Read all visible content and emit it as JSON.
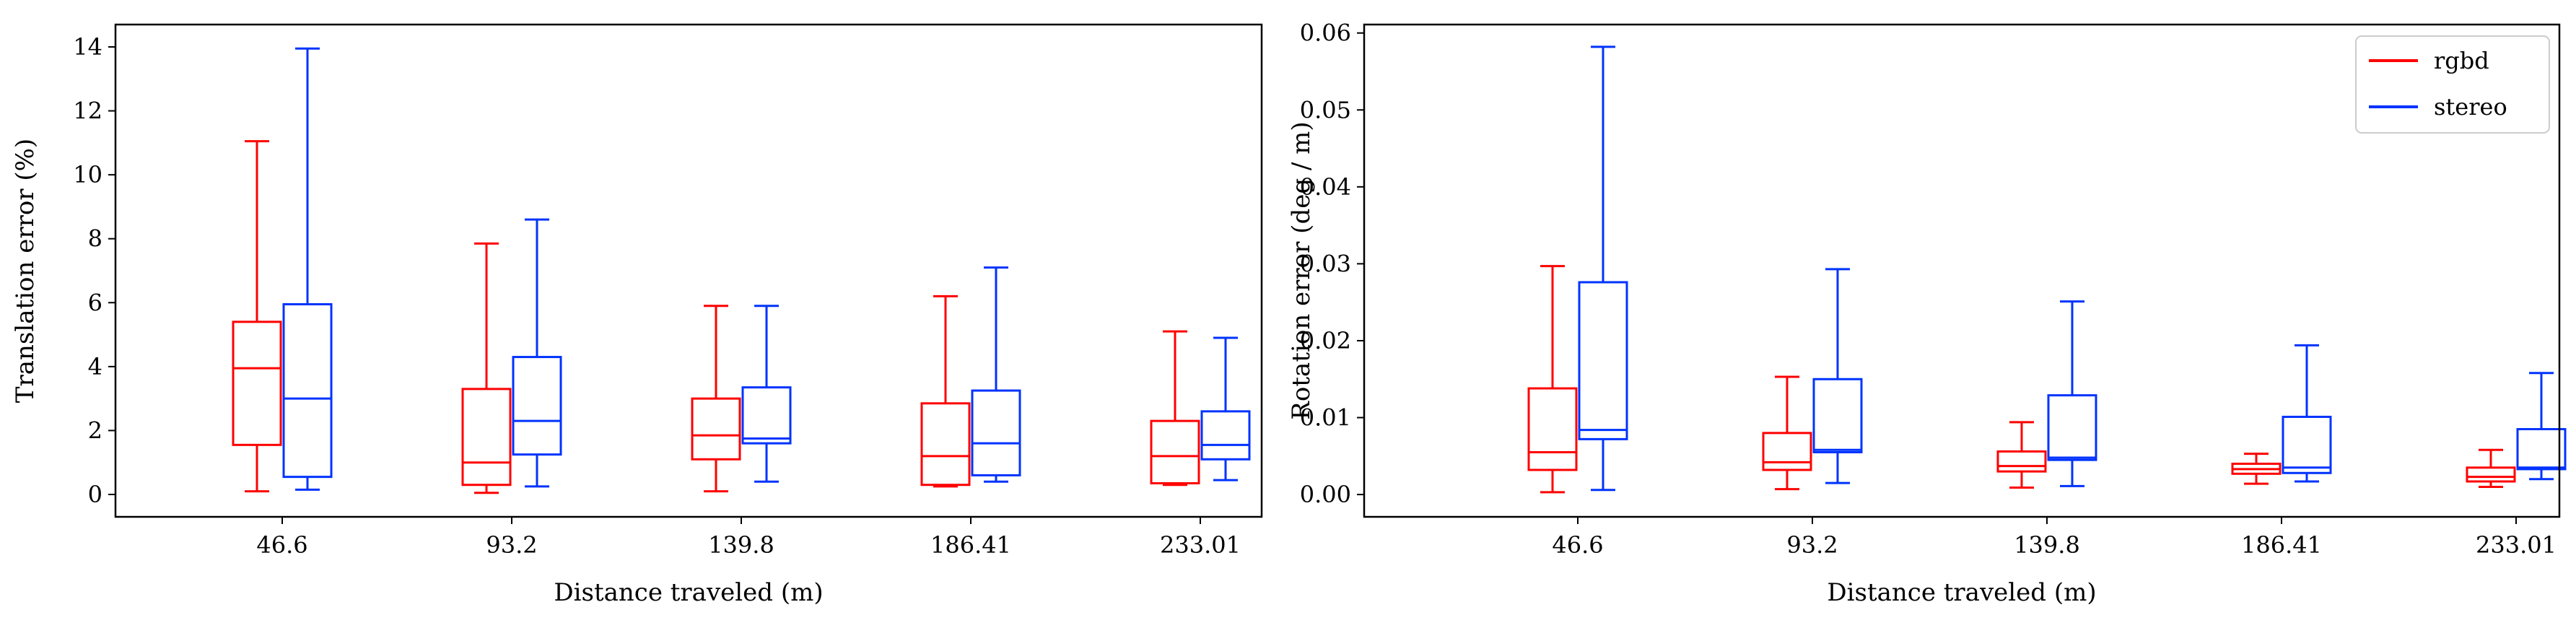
{
  "colors": {
    "rgbd": "#ff0000",
    "stereo": "#0033ff",
    "axes": "#000000",
    "background": "#ffffff"
  },
  "chart_data": [
    {
      "type": "box",
      "title": "",
      "xlabel": "Distance traveled (m)",
      "ylabel": "Translation error (%)",
      "categories": [
        "46.6",
        "93.2",
        "139.8",
        "186.41",
        "233.01"
      ],
      "ylim": [
        -0.7,
        14.7
      ],
      "yticks": [
        "0",
        "2",
        "4",
        "6",
        "8",
        "10",
        "12",
        "14"
      ],
      "grid": false,
      "legend": null,
      "series": [
        {
          "name": "rgbd",
          "boxes": [
            {
              "min": 0.1,
              "q1": 1.55,
              "median": 3.95,
              "q3": 5.4,
              "max": 11.05
            },
            {
              "min": 0.05,
              "q1": 0.3,
              "median": 1.0,
              "q3": 3.3,
              "max": 7.85
            },
            {
              "min": 0.1,
              "q1": 1.1,
              "median": 1.85,
              "q3": 3.0,
              "max": 5.9
            },
            {
              "min": 0.25,
              "q1": 0.3,
              "median": 1.2,
              "q3": 2.85,
              "max": 6.2
            },
            {
              "min": 0.3,
              "q1": 0.35,
              "median": 1.2,
              "q3": 2.3,
              "max": 5.1
            }
          ]
        },
        {
          "name": "stereo",
          "boxes": [
            {
              "min": 0.15,
              "q1": 0.55,
              "median": 3.0,
              "q3": 5.95,
              "max": 13.95
            },
            {
              "min": 0.25,
              "q1": 1.25,
              "median": 2.3,
              "q3": 4.3,
              "max": 8.6
            },
            {
              "min": 0.4,
              "q1": 1.6,
              "median": 1.75,
              "q3": 3.35,
              "max": 5.9
            },
            {
              "min": 0.4,
              "q1": 0.6,
              "median": 1.6,
              "q3": 3.25,
              "max": 7.1
            },
            {
              "min": 0.45,
              "q1": 1.1,
              "median": 1.55,
              "q3": 2.6,
              "max": 4.9
            }
          ]
        }
      ]
    },
    {
      "type": "box",
      "title": "",
      "xlabel": "Distance traveled (m)",
      "ylabel": "Rotation error (deg / m)",
      "categories": [
        "46.6",
        "93.2",
        "139.8",
        "186.41",
        "233.01"
      ],
      "ylim": [
        -0.0029,
        0.0611
      ],
      "yticks": [
        "0.00",
        "0.01",
        "0.02",
        "0.03",
        "0.04",
        "0.05",
        "0.06"
      ],
      "grid": false,
      "legend": {
        "placement": "top-right",
        "entries": [
          "rgbd",
          "stereo"
        ]
      },
      "series": [
        {
          "name": "rgbd",
          "boxes": [
            {
              "min": 0.0003,
              "q1": 0.0032,
              "median": 0.0055,
              "q3": 0.0138,
              "max": 0.0297
            },
            {
              "min": 0.0007,
              "q1": 0.0032,
              "median": 0.0042,
              "q3": 0.008,
              "max": 0.0153
            },
            {
              "min": 0.0009,
              "q1": 0.003,
              "median": 0.0037,
              "q3": 0.0056,
              "max": 0.0094
            },
            {
              "min": 0.0014,
              "q1": 0.0027,
              "median": 0.0033,
              "q3": 0.004,
              "max": 0.0053
            },
            {
              "min": 0.001,
              "q1": 0.0017,
              "median": 0.0023,
              "q3": 0.0035,
              "max": 0.0058
            }
          ]
        },
        {
          "name": "stereo",
          "boxes": [
            {
              "min": 0.0006,
              "q1": 0.0072,
              "median": 0.0084,
              "q3": 0.0276,
              "max": 0.0582
            },
            {
              "min": 0.0015,
              "q1": 0.0055,
              "median": 0.0058,
              "q3": 0.015,
              "max": 0.0293
            },
            {
              "min": 0.0011,
              "q1": 0.0045,
              "median": 0.0048,
              "q3": 0.0129,
              "max": 0.0251
            },
            {
              "min": 0.0017,
              "q1": 0.0028,
              "median": 0.0035,
              "q3": 0.0101,
              "max": 0.0194
            },
            {
              "min": 0.002,
              "q1": 0.0033,
              "median": 0.0035,
              "q3": 0.0085,
              "max": 0.0158
            }
          ]
        }
      ]
    }
  ]
}
